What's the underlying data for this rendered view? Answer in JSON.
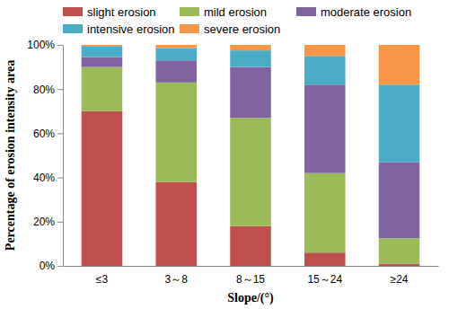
{
  "chart_data": {
    "type": "bar",
    "stacked": true,
    "grid": false,
    "legend": "top",
    "x_label": "Slope/(°)",
    "y_label": "Percentage of erosion intensity area",
    "categories": [
      "≤3",
      "3～8",
      "8～15",
      "15～24",
      "≥24"
    ],
    "series": [
      {
        "name": "slight erosion",
        "color": "#c0504d",
        "values": [
          70,
          38,
          18,
          6,
          1
        ]
      },
      {
        "name": "mild erosion",
        "color": "#9bbb59",
        "values": [
          20,
          45,
          49,
          36,
          11.5
        ]
      },
      {
        "name": "moderate erosion",
        "color": "#8064a2",
        "values": [
          4.5,
          10,
          23,
          40,
          34.5
        ]
      },
      {
        "name": "intensive erosion",
        "color": "#4bacc6",
        "values": [
          5,
          5.5,
          7.5,
          13,
          35
        ]
      },
      {
        "name": "severe erosion",
        "color": "#f79646",
        "values": [
          0.5,
          1.5,
          2.5,
          5,
          18
        ]
      }
    ],
    "ylim": [
      0,
      100
    ],
    "yticks": [
      {
        "value": 0,
        "label": "0%"
      },
      {
        "value": 20,
        "label": "20%"
      },
      {
        "value": 40,
        "label": "40%"
      },
      {
        "value": 60,
        "label": "60%"
      },
      {
        "value": 80,
        "label": "80%"
      },
      {
        "value": 100,
        "label": "100%"
      }
    ]
  }
}
